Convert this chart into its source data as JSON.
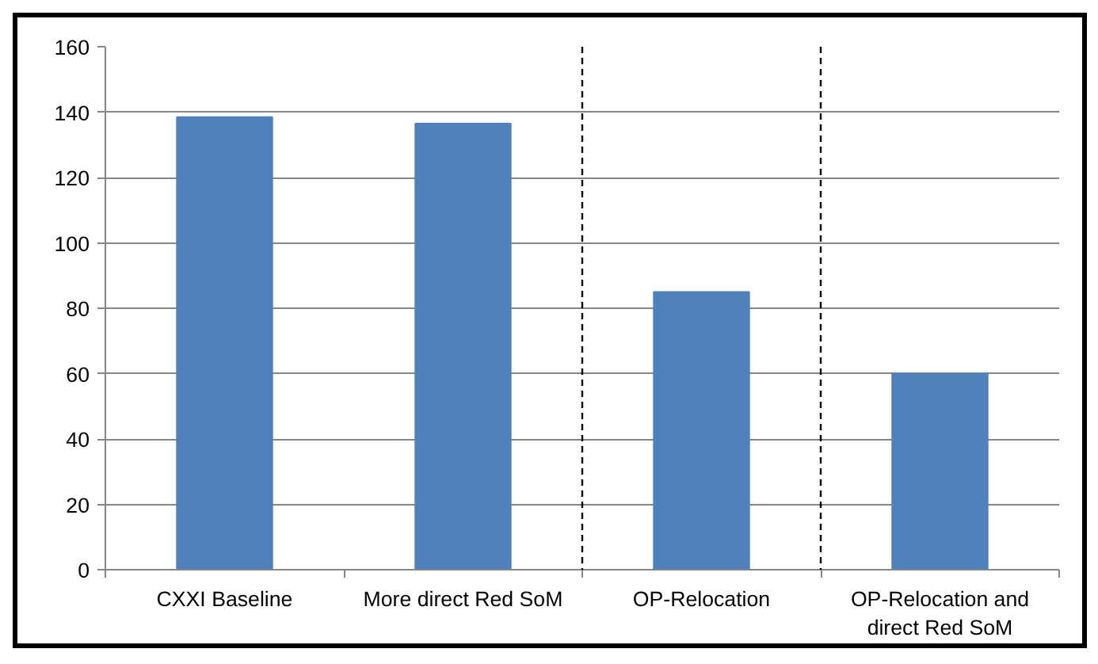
{
  "chart_data": {
    "type": "bar",
    "categories": [
      "CXXI Baseline",
      "More direct Red SoM",
      "OP-Relocation",
      "OP-Relocation and\ndirect Red SoM"
    ],
    "values": [
      138.5,
      136.5,
      85,
      60
    ],
    "color": "#4f81bd",
    "ylim": [
      0,
      160
    ],
    "yticks": [
      0,
      20,
      40,
      60,
      80,
      100,
      120,
      140,
      160
    ],
    "grid": "y"
  }
}
